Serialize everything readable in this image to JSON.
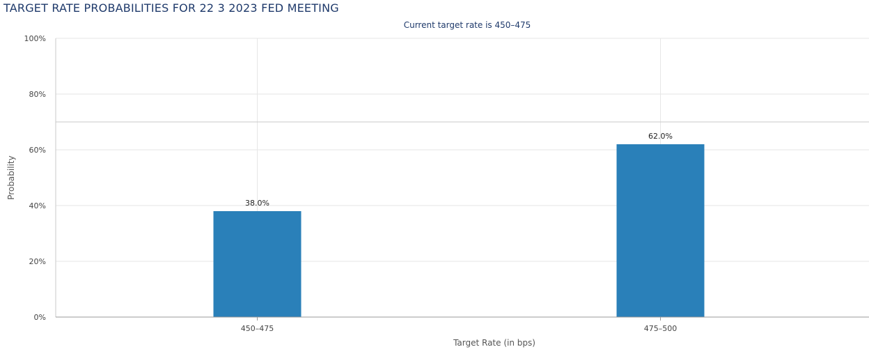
{
  "page": {
    "title": "TARGET RATE PROBABILITIES FOR 22 3 2023 FED MEETING"
  },
  "chart_data": {
    "type": "bar",
    "subtitle": "Current target rate is 450–475",
    "categories": [
      "450–475",
      "475–500"
    ],
    "values": [
      38.0,
      62.0
    ],
    "value_labels": [
      "38.0%",
      "62.0%"
    ],
    "xlabel": "Target Rate (in bps)",
    "ylabel": "Probability",
    "ylim": [
      0,
      100
    ],
    "yticks": [
      0,
      20,
      40,
      60,
      80,
      100
    ],
    "ytick_labels": [
      "0%",
      "20%",
      "40%",
      "60%",
      "80%",
      "100%"
    ],
    "grid": true,
    "bar_color": "#2a80b9"
  }
}
